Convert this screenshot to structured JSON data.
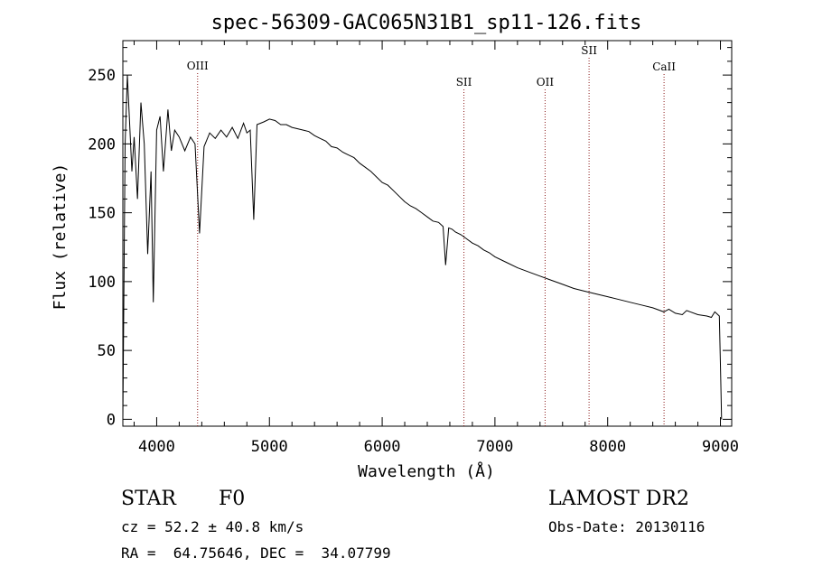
{
  "chart_data": {
    "type": "line",
    "title": "spec-56309-GAC065N31B1_sp11-126.fits",
    "xlabel": "Wavelength (Å)",
    "ylabel": "Flux (relative)",
    "xlim": [
      3700,
      9100
    ],
    "ylim": [
      -5,
      275
    ],
    "xticks": [
      4000,
      5000,
      6000,
      7000,
      8000,
      9000
    ],
    "yticks": [
      0,
      50,
      100,
      150,
      200,
      250
    ],
    "grid": false,
    "series": [
      {
        "x": [
          3700,
          3720,
          3740,
          3760,
          3780,
          3800,
          3830,
          3860,
          3890,
          3920,
          3950,
          3970,
          4000,
          4030,
          4060,
          4100,
          4130,
          4160,
          4200,
          4250,
          4300,
          4340,
          4380,
          4420,
          4470,
          4520,
          4570,
          4620,
          4670,
          4720,
          4770,
          4800,
          4830,
          4861,
          4890,
          4920,
          4950,
          5000,
          5050,
          5100,
          5150,
          5200,
          5250,
          5300,
          5350,
          5400,
          5450,
          5500,
          5550,
          5600,
          5650,
          5700,
          5750,
          5800,
          5850,
          5900,
          5950,
          6000,
          6050,
          6100,
          6150,
          6200,
          6250,
          6300,
          6350,
          6400,
          6450,
          6500,
          6540,
          6563,
          6590,
          6620,
          6650,
          6700,
          6750,
          6800,
          6850,
          6900,
          6950,
          7000,
          7100,
          7200,
          7300,
          7400,
          7500,
          7600,
          7700,
          7800,
          7900,
          8000,
          8100,
          8200,
          8300,
          8400,
          8498,
          8542,
          8600,
          8662,
          8700,
          8800,
          8880,
          8920,
          8950,
          8990,
          9000,
          9010
        ],
        "y": [
          0,
          200,
          250,
          215,
          180,
          205,
          160,
          230,
          200,
          120,
          180,
          85,
          210,
          220,
          180,
          225,
          195,
          210,
          205,
          195,
          205,
          200,
          135,
          198,
          208,
          204,
          210,
          205,
          212,
          204,
          215,
          208,
          210,
          145,
          214,
          215,
          216,
          218,
          217,
          214,
          214,
          212,
          211,
          210,
          209,
          206,
          204,
          202,
          198,
          197,
          194,
          192,
          190,
          186,
          183,
          180,
          176,
          172,
          170,
          166,
          162,
          158,
          155,
          153,
          150,
          147,
          144,
          143,
          140,
          112,
          139,
          138,
          136,
          134,
          131,
          128,
          126,
          123,
          121,
          118,
          114,
          110,
          107,
          104,
          101,
          98,
          95,
          93,
          91,
          89,
          87,
          85,
          83,
          81,
          78,
          80,
          77,
          76,
          79,
          76,
          75,
          74,
          78,
          75,
          40,
          0
        ]
      }
    ],
    "lines": [
      {
        "label": "OIII",
        "x": 4363
      },
      {
        "label": "SII",
        "x": 6725
      },
      {
        "label": "OII",
        "x": 7445
      },
      {
        "label": "SII",
        "x": 7835
      },
      {
        "label": "CaII",
        "x": 8500
      }
    ]
  },
  "footer": {
    "object_type": "STAR",
    "subclass": "F0",
    "survey": "LAMOST DR2",
    "cz": "cz = 52.2 ± 40.8 km/s",
    "obs_date": "Obs-Date: 20130116",
    "coords": "RA =  64.75646, DEC =  34.07799"
  },
  "colors": {
    "spectrum": "#000000",
    "line_markers": "#8b1a1a"
  }
}
